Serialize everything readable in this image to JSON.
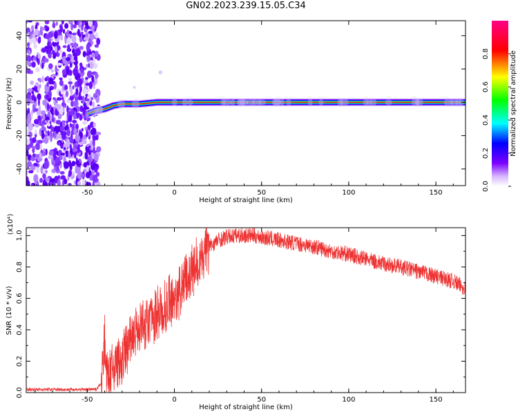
{
  "title": "GN02.2023.239.15.05.C34",
  "chart_data": [
    {
      "type": "heatmap",
      "title": "GN02.2023.239.15.05.C34",
      "xlabel": "Height of straight line (km)",
      "ylabel": "Frequency (Hz)",
      "xlim": [
        -85,
        167
      ],
      "ylim": [
        -50,
        49
      ],
      "xticks": [
        -50,
        0,
        50,
        100,
        150
      ],
      "yticks": [
        -40,
        -20,
        0,
        20,
        40
      ],
      "colorbar": {
        "label": "Normalized spectral amplitude",
        "range": [
          0,
          1
        ],
        "ticks": [
          "0.0",
          "0.2",
          "0.4",
          "0.6",
          "0.8"
        ],
        "colors": [
          "#ffffff",
          "#7b00ff",
          "#0000ff",
          "#00ffff",
          "#00ff00",
          "#ffff00",
          "#ff0000",
          "#ff00aa"
        ]
      },
      "signal_line": {
        "x": [
          -50,
          -45,
          -40,
          -35,
          -30,
          -20,
          -10,
          0,
          50,
          100,
          167
        ],
        "frequency": [
          -7,
          -5,
          -4,
          -2,
          -1,
          -1,
          0,
          0,
          0,
          0,
          0
        ]
      },
      "noise_region_x": [
        -85,
        -45
      ]
    },
    {
      "type": "line",
      "xlabel": "Height of straight line (km)",
      "ylabel": "SNR (10 * v/v)",
      "y_scale_label": "(x10⁴)",
      "xlim": [
        -85,
        167
      ],
      "ylim": [
        0,
        1.05
      ],
      "xticks": [
        -50,
        0,
        50,
        100,
        150
      ],
      "yticks": [
        "0.0",
        "0.2",
        "0.4",
        "0.6",
        "0.8",
        "1.0"
      ],
      "color": "#ee3333",
      "series": [
        {
          "x": [
            -85,
            -45,
            -42,
            -40,
            -39,
            -37,
            -35,
            -30,
            -25,
            -20,
            -15,
            -10,
            -5,
            0,
            5,
            10,
            15,
            20,
            25,
            30,
            35,
            40,
            45,
            50,
            60,
            70,
            80,
            90,
            100,
            110,
            120,
            130,
            140,
            150,
            160,
            167
          ],
          "values": [
            0.02,
            0.02,
            0.06,
            0.35,
            0.1,
            0.12,
            0.15,
            0.22,
            0.32,
            0.42,
            0.45,
            0.5,
            0.55,
            0.6,
            0.68,
            0.78,
            0.85,
            0.93,
            0.97,
            0.99,
            1.0,
            1.0,
            1.0,
            0.99,
            0.97,
            0.95,
            0.93,
            0.9,
            0.88,
            0.85,
            0.82,
            0.8,
            0.77,
            0.74,
            0.71,
            0.66
          ]
        }
      ]
    }
  ]
}
